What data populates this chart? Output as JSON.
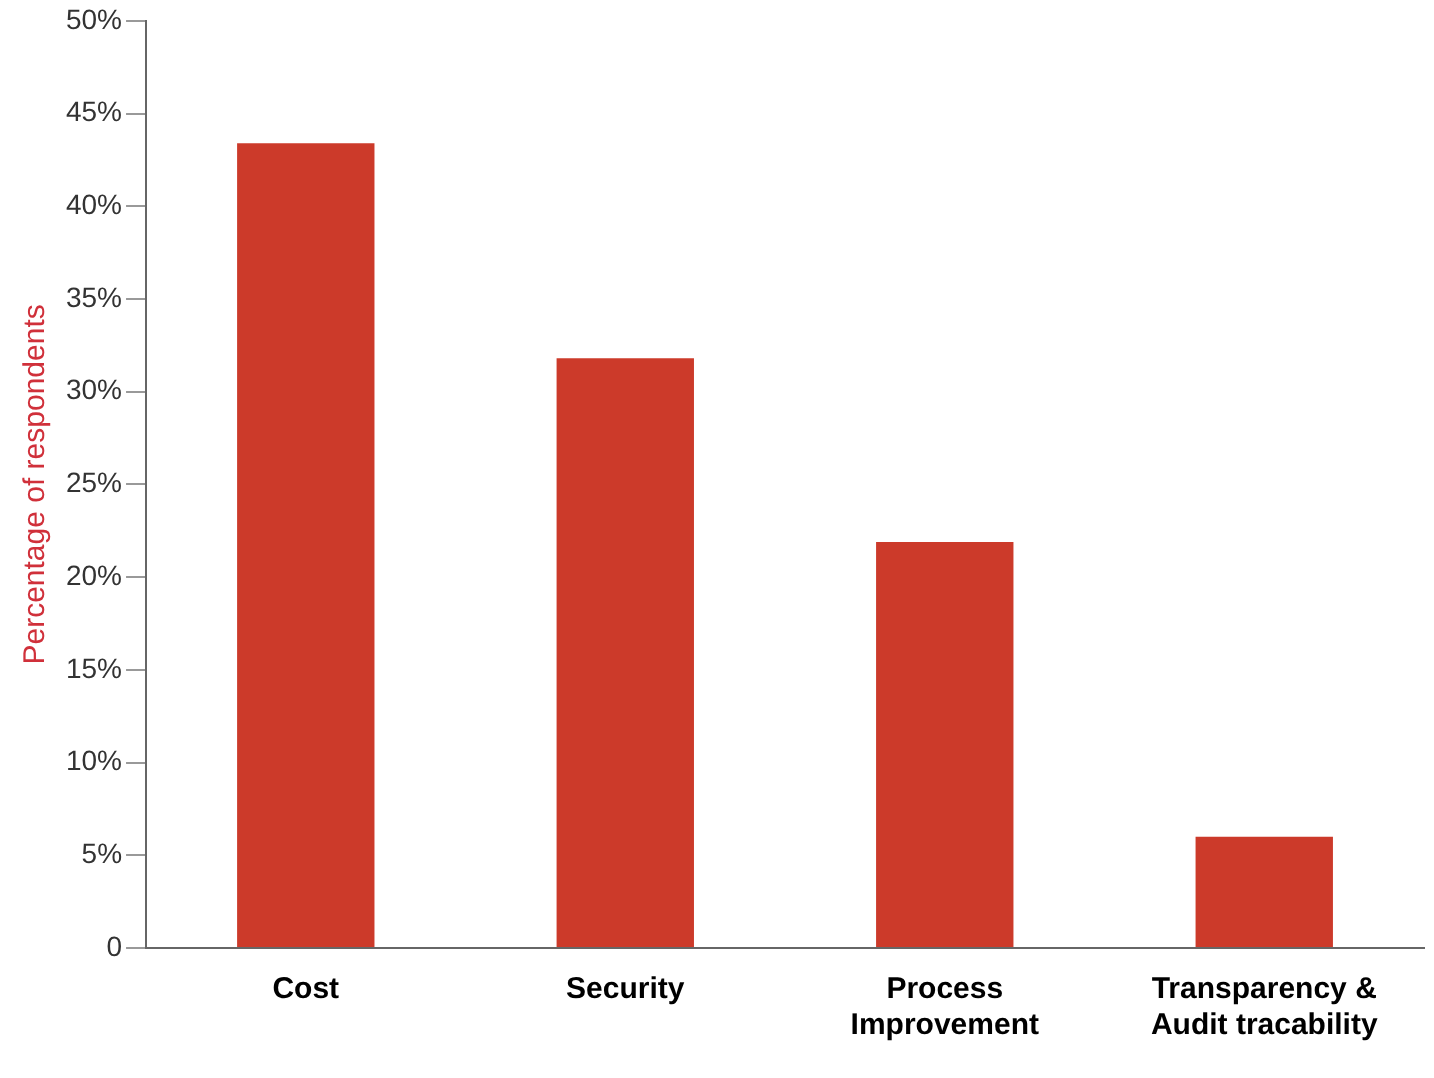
{
  "chart_data": {
    "type": "bar",
    "ylabel": "Percentage of respondents",
    "categories": [
      "Cost",
      "Security",
      "Process Improvement",
      "Transparency & Audit tracability"
    ],
    "values": [
      43.4,
      31.8,
      21.9,
      6
    ],
    "color": "#cc3a2a",
    "ylim": [
      0,
      50
    ],
    "yticks": [
      0,
      {
        "value": 5,
        "label": "5%"
      },
      {
        "value": 10,
        "label": "10%"
      },
      {
        "value": 15,
        "label": "15%"
      },
      {
        "value": 20,
        "label": "20%"
      },
      {
        "value": 25,
        "label": "25%"
      },
      {
        "value": 30,
        "label": "30%"
      },
      {
        "value": 35,
        "label": "35%"
      },
      {
        "value": 40,
        "label": "40%"
      },
      {
        "value": 45,
        "label": "45%"
      },
      {
        "value": 50,
        "label": "50%"
      }
    ],
    "grid": false,
    "legend": false
  }
}
